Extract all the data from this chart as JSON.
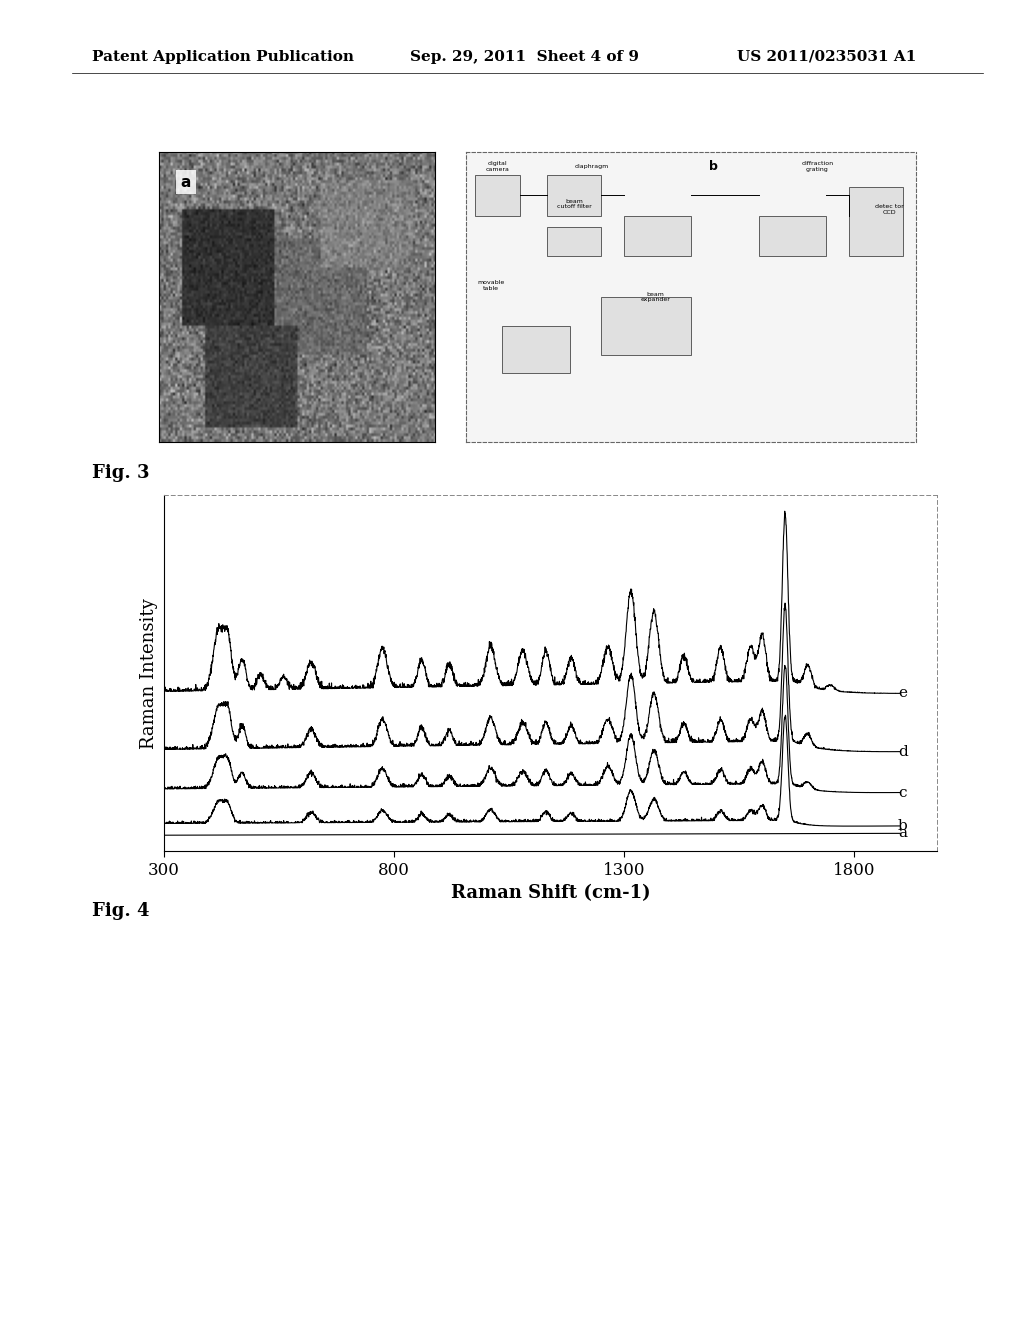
{
  "header_left": "Patent Application Publication",
  "header_mid": "Sep. 29, 2011  Sheet 4 of 9",
  "header_right": "US 2011/0235031 A1",
  "fig3_label": "Fig. 3",
  "fig4_label": "Fig. 4",
  "xlabel": "Raman Shift (cm-1)",
  "ylabel": "Raman Intensity",
  "xticks": [
    300,
    800,
    1300,
    1800
  ],
  "xlim": [
    300,
    1900
  ],
  "curve_labels": [
    "a",
    "b",
    "c",
    "d",
    "e"
  ],
  "bg_color": "#ffffff",
  "line_color": "#000000",
  "header_fontsize": 11,
  "axis_label_fontsize": 13,
  "tick_fontsize": 12,
  "fig_label_fontsize": 13
}
